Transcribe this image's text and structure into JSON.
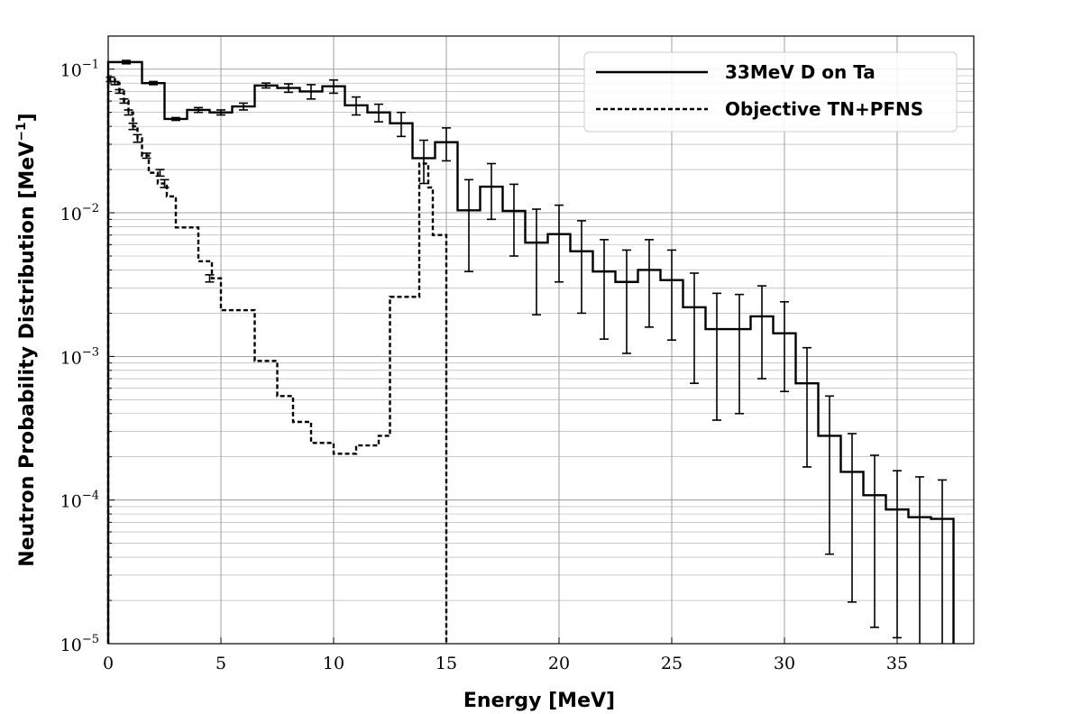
{
  "chart_data": {
    "type": "line",
    "title": "",
    "xlabel": "Energy [MeV]",
    "ylabel": "Neutron Probability Distribution [MeV",
    "ylabel_superscript": "−1",
    "ylabel_close": "]",
    "xlim": [
      0,
      38.4
    ],
    "ylim": [
      1e-05,
      0.17
    ],
    "yscale": "log",
    "grid": "major and minor",
    "legend_placement": "top-right",
    "x_ticks": [
      0,
      5,
      10,
      15,
      20,
      25,
      30,
      35
    ],
    "x_tick_labels": [
      "0",
      "5",
      "10",
      "15",
      "20",
      "25",
      "30",
      "35"
    ],
    "y_ticks": [
      1e-05,
      0.0001,
      0.001,
      0.01,
      0.1
    ],
    "y_tick_bases": [
      "10",
      "10",
      "10",
      "10",
      "10"
    ],
    "y_tick_exponents": [
      "−5",
      "−4",
      "−3",
      "−2",
      "−1"
    ],
    "series": [
      {
        "name": "33MeV D on Ta",
        "style": "solid",
        "color": "#000000",
        "edges": [
          0,
          1.5,
          2.5,
          3.5,
          4.5,
          5.5,
          6.5,
          7.5,
          8.5,
          9.5,
          10.5,
          11.5,
          12.5,
          13.5,
          14.5,
          15.5,
          16.5,
          17.5,
          18.5,
          19.5,
          20.5,
          21.5,
          22.5,
          23.5,
          24.5,
          25.5,
          26.5,
          27.5,
          28.5,
          29.5,
          30.5,
          31.5,
          32.5,
          33.5,
          34.5,
          35.5,
          36.5,
          37.5
        ],
        "values": [
          0.112,
          0.08,
          0.045,
          0.052,
          0.05,
          0.055,
          0.077,
          0.074,
          0.07,
          0.076,
          0.056,
          0.05,
          0.042,
          0.024,
          0.031,
          0.0104,
          0.0152,
          0.0103,
          0.0062,
          0.0071,
          0.0054,
          0.0039,
          0.0033,
          0.004,
          0.0034,
          0.0022,
          0.00155,
          0.00155,
          0.0019,
          0.00145,
          0.00065,
          0.00028,
          0.000157,
          0.000108,
          8.6e-05,
          7.6e-05,
          7.4e-05
        ],
        "errors": {
          "x": [
            0.8,
            2.0,
            3.0,
            4.0,
            5.0,
            6.0,
            7.0,
            8.0,
            9.0,
            10.0,
            11.0,
            12.0,
            13.0,
            14.0,
            15.0,
            16.0,
            17.0,
            18.0,
            19.0,
            20.0,
            21.0,
            22.0,
            23.0,
            24.0,
            25.0,
            26.0,
            27.0,
            28.0,
            29.0,
            30.0,
            31.0,
            32.0,
            33.0,
            34.0,
            35.0,
            36.0,
            37.0
          ],
          "low": [
            0.109,
            0.078,
            0.044,
            0.05,
            0.048,
            0.052,
            0.074,
            0.069,
            0.062,
            0.068,
            0.048,
            0.043,
            0.034,
            0.016,
            0.023,
            0.0039,
            0.009,
            0.005,
            0.00195,
            0.0033,
            0.002,
            0.00132,
            0.00105,
            0.0016,
            0.0013,
            0.00065,
            0.00036,
            0.0004,
            0.0007,
            0.00057,
            0.00017,
            4.2e-05,
            1.95e-05,
            1.3e-05,
            1.1e-05,
            1e-05,
            1e-05
          ],
          "high": [
            0.115,
            0.082,
            0.046,
            0.054,
            0.052,
            0.058,
            0.08,
            0.079,
            0.078,
            0.084,
            0.064,
            0.057,
            0.05,
            0.032,
            0.039,
            0.017,
            0.022,
            0.0158,
            0.0106,
            0.0113,
            0.0088,
            0.0065,
            0.0055,
            0.0065,
            0.0055,
            0.0038,
            0.00275,
            0.0027,
            0.0031,
            0.0024,
            0.00115,
            0.00053,
            0.00029,
            0.000205,
            0.00016,
            0.000145,
            0.000138
          ]
        }
      },
      {
        "name": "Objective TN+PFNS",
        "style": "dashed",
        "color": "#000000",
        "edges": [
          0,
          0.3,
          0.5,
          0.7,
          0.9,
          1.1,
          1.3,
          1.5,
          1.8,
          2.2,
          2.6,
          3.0,
          4.0,
          4.6,
          5.0,
          6.5,
          7.5,
          8.2,
          9.0,
          10.0,
          11.0,
          12.0,
          12.5,
          13.8,
          14.2,
          14.4,
          15.0
        ],
        "values": [
          0.085,
          0.08,
          0.07,
          0.06,
          0.05,
          0.04,
          0.033,
          0.025,
          0.019,
          0.016,
          0.013,
          0.0079,
          0.0046,
          0.0035,
          0.0021,
          0.00093,
          0.00053,
          0.00035,
          0.00025,
          0.00021,
          0.00024,
          0.00028,
          0.0026,
          0.022,
          0.015,
          0.007
        ],
        "errors": {
          "x": [
            0.1,
            0.3,
            0.5,
            0.7,
            0.9,
            1.1,
            1.3,
            1.7,
            2.3,
            2.5,
            4.5
          ],
          "low": [
            0.082,
            0.078,
            0.068,
            0.058,
            0.048,
            0.038,
            0.031,
            0.024,
            0.018,
            0.015,
            0.0033
          ],
          "high": [
            0.088,
            0.082,
            0.072,
            0.062,
            0.052,
            0.042,
            0.035,
            0.026,
            0.02,
            0.017,
            0.0037
          ]
        }
      }
    ]
  }
}
